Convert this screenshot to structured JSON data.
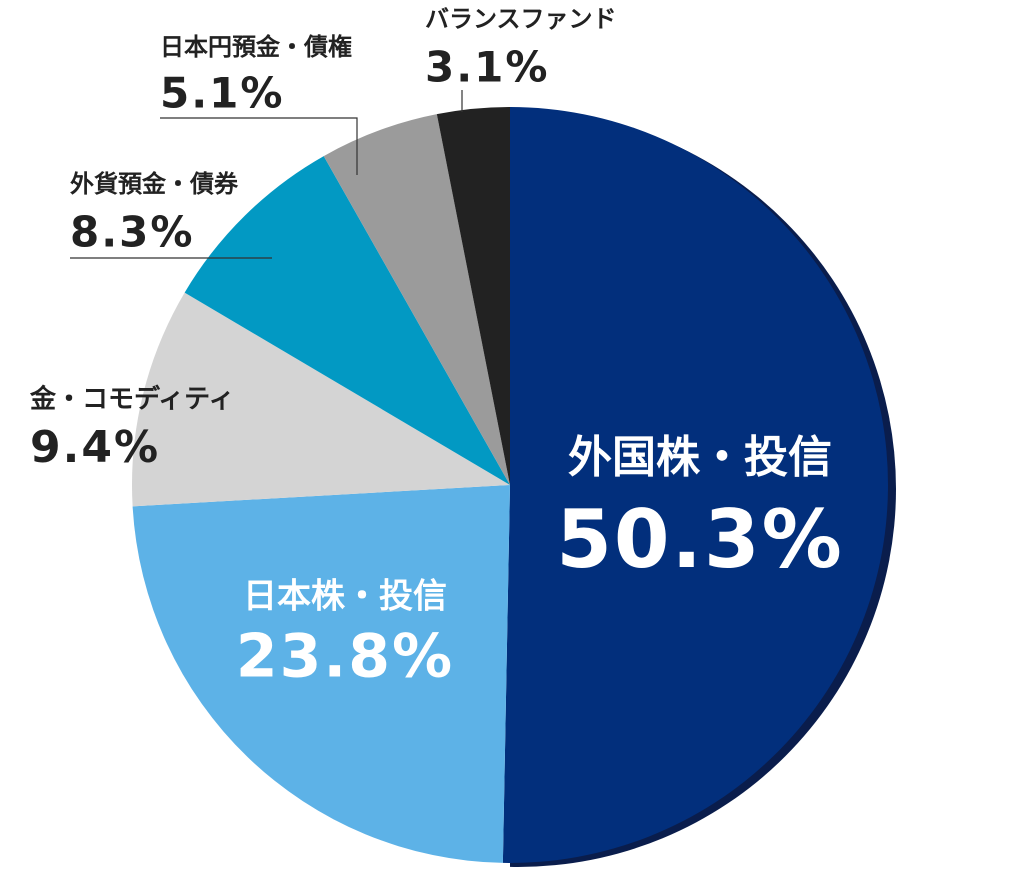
{
  "chart_data": {
    "type": "pie",
    "categories": [
      "外国株・投信",
      "日本株・投信",
      "金・コモディティ",
      "外貨預金・債券",
      "日本円預金・債権",
      "バランスファンド"
    ],
    "values": [
      50.3,
      23.8,
      9.4,
      8.3,
      5.1,
      3.1
    ],
    "value_labels": [
      "50.3%",
      "23.8%",
      "9.4%",
      "8.3%",
      "5.1%",
      "3.1%"
    ],
    "colors": [
      "#022f7c",
      "#5db2e7",
      "#d4d4d4",
      "#0299c3",
      "#9b9b9b",
      "#222222"
    ]
  }
}
